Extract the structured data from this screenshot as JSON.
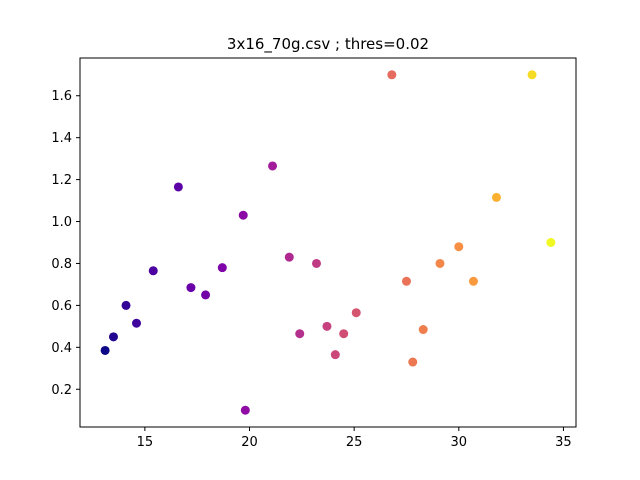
{
  "chart_data": {
    "type": "scatter",
    "title": "3x16_70g.csv ; thres=0.02",
    "xlabel": "",
    "ylabel": "",
    "xlim": [
      11.9,
      35.6
    ],
    "ylim": [
      0.02,
      1.78
    ],
    "grid": false,
    "legend": "none",
    "colormap": "plasma",
    "x_ticks": [
      15,
      20,
      25,
      30,
      35
    ],
    "y_ticks": [
      0.2,
      0.4,
      0.6,
      0.8,
      1.0,
      1.2,
      1.4,
      1.6
    ],
    "x_tick_labels": [
      "15",
      "20",
      "25",
      "30",
      "35"
    ],
    "y_tick_labels": [
      "0.2",
      "0.4",
      "0.6",
      "0.8",
      "1.0",
      "1.2",
      "1.4",
      "1.6"
    ],
    "points": [
      {
        "x": 13.1,
        "y": 0.385,
        "color": "#0d0887"
      },
      {
        "x": 13.5,
        "y": 0.45,
        "color": "#220690"
      },
      {
        "x": 14.1,
        "y": 0.6,
        "color": "#330597"
      },
      {
        "x": 14.6,
        "y": 0.515,
        "color": "#3e049c"
      },
      {
        "x": 15.4,
        "y": 0.765,
        "color": "#4c02a1"
      },
      {
        "x": 16.6,
        "y": 1.165,
        "color": "#5c01a6"
      },
      {
        "x": 17.2,
        "y": 0.685,
        "color": "#6a00a8"
      },
      {
        "x": 17.9,
        "y": 0.65,
        "color": "#7201a8"
      },
      {
        "x": 18.7,
        "y": 0.78,
        "color": "#7e03a8"
      },
      {
        "x": 19.7,
        "y": 1.03,
        "color": "#8b0aa5"
      },
      {
        "x": 19.8,
        "y": 0.1,
        "color": "#8f0da4"
      },
      {
        "x": 21.1,
        "y": 1.265,
        "color": "#a11b9b"
      },
      {
        "x": 21.9,
        "y": 0.83,
        "color": "#b02991"
      },
      {
        "x": 22.4,
        "y": 0.465,
        "color": "#b52f8c"
      },
      {
        "x": 23.2,
        "y": 0.8,
        "color": "#c03a83"
      },
      {
        "x": 23.7,
        "y": 0.5,
        "color": "#c6417d"
      },
      {
        "x": 24.1,
        "y": 0.365,
        "color": "#cb4679"
      },
      {
        "x": 24.5,
        "y": 0.465,
        "color": "#d04d73"
      },
      {
        "x": 25.1,
        "y": 0.565,
        "color": "#d5546e"
      },
      {
        "x": 26.8,
        "y": 1.7,
        "color": "#e46b5d"
      },
      {
        "x": 27.5,
        "y": 0.715,
        "color": "#e97257"
      },
      {
        "x": 27.8,
        "y": 0.33,
        "color": "#ec7853"
      },
      {
        "x": 28.3,
        "y": 0.485,
        "color": "#ef7e4f"
      },
      {
        "x": 29.1,
        "y": 0.8,
        "color": "#f3874a"
      },
      {
        "x": 30.0,
        "y": 0.88,
        "color": "#f79044"
      },
      {
        "x": 30.7,
        "y": 0.715,
        "color": "#f99a3e"
      },
      {
        "x": 31.8,
        "y": 1.115,
        "color": "#fbb032"
      },
      {
        "x": 33.5,
        "y": 1.7,
        "color": "#f5db25"
      },
      {
        "x": 34.4,
        "y": 0.9,
        "color": "#f0f921"
      }
    ]
  }
}
